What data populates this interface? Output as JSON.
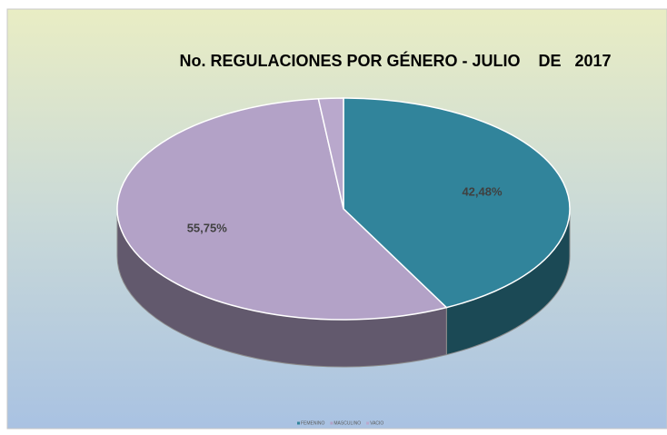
{
  "chart_data": {
    "type": "pie3d",
    "title": "No. REGULACIONES POR GÉNERO - JULIO    DE   2017",
    "categories": [
      "FEMENINO",
      "MASCULINO",
      "VACIO"
    ],
    "values": [
      42.48,
      55.75,
      1.77
    ],
    "value_labels": [
      "42,48%",
      "55,75%",
      null
    ],
    "colors": [
      "#31849b",
      "#b3a2c7",
      "#b9a8cc"
    ],
    "legend": "bottom"
  }
}
